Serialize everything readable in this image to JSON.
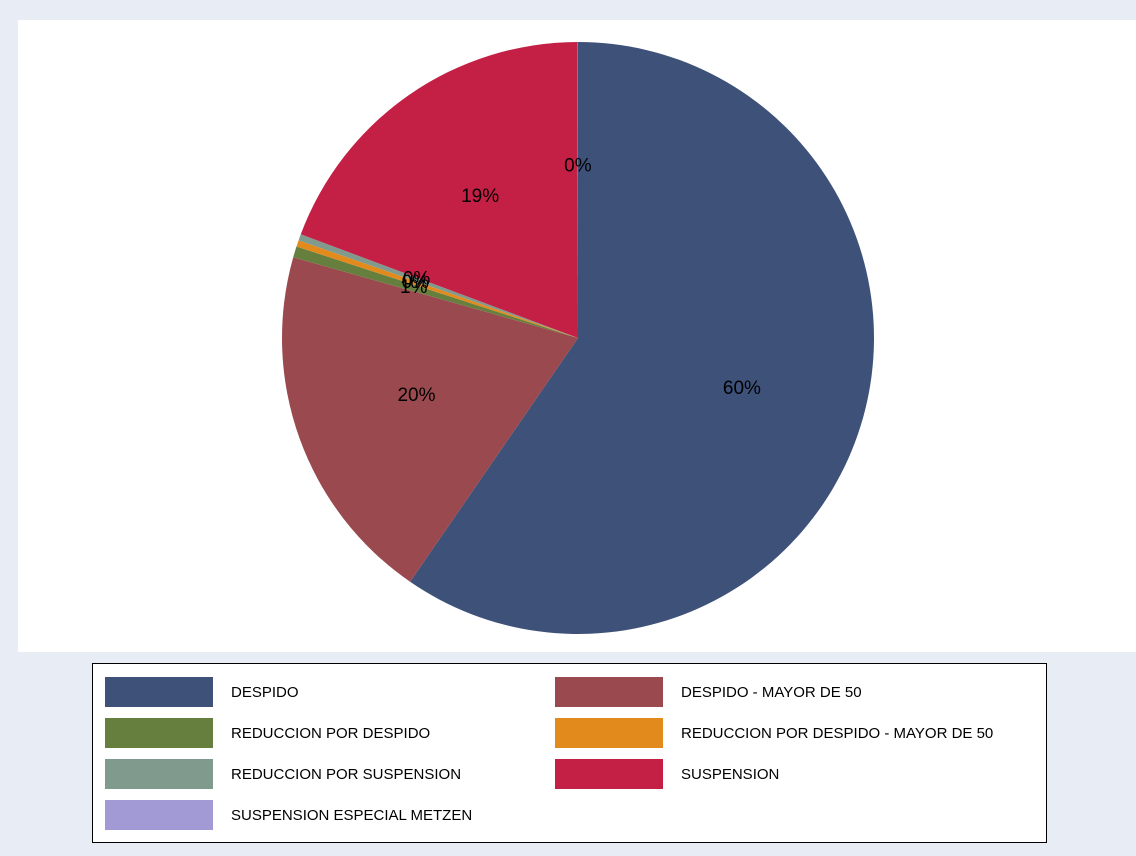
{
  "chart_data": {
    "type": "pie",
    "start_angle_deg": 0,
    "direction": "clockwise",
    "slices": [
      {
        "name": "DESPIDO",
        "value": 59.6,
        "label": "60%",
        "color": "#3e5179"
      },
      {
        "name": "DESPIDO - MAYOR DE 50",
        "value": 19.8,
        "label": "20%",
        "color": "#9a4a4e"
      },
      {
        "name": "REDUCCION POR DESPIDO",
        "value": 0.6,
        "label": "1%",
        "color": "#667f3f"
      },
      {
        "name": "REDUCCION POR DESPIDO - MAYOR DE 50",
        "value": 0.35,
        "label": "0%",
        "color": "#e38a1c"
      },
      {
        "name": "REDUCCION POR SUSPENSION",
        "value": 0.35,
        "label": "0%",
        "color": "#809a8e"
      },
      {
        "name": "SUSPENSION",
        "value": 19.28,
        "label": "19%",
        "color": "#c41f45"
      },
      {
        "name": "SUSPENSION ESPECIAL METZEN",
        "value": 0.02,
        "label": "0%",
        "color": "#a19ad5"
      }
    ],
    "legend": {
      "position": "bottom",
      "columns": 2,
      "border": true
    }
  }
}
